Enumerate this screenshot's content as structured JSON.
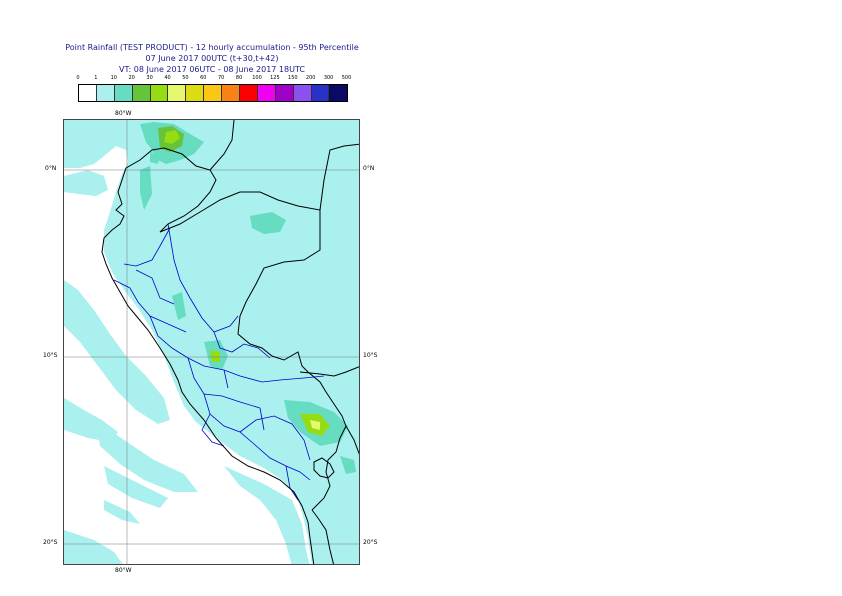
{
  "title": {
    "line1": "Point Rainfall (TEST PRODUCT) - 12 hourly accumulation - 95th Percentile",
    "line2": "07 June 2017 00UTC (t+30,t+42)",
    "line3": "VT: 08 June 2017 06UTC - 08 June 2017 18UTC"
  },
  "legend": {
    "thresholds": [
      "0",
      "1",
      "10",
      "20",
      "30",
      "40",
      "50",
      "60",
      "70",
      "80",
      "100",
      "125",
      "150",
      "200",
      "300",
      "500"
    ],
    "colors": [
      "#ffffff",
      "#aaf0ee",
      "#66dcc0",
      "#66c43a",
      "#96dc14",
      "#e6f86e",
      "#dcdc14",
      "#fac814",
      "#fa8214",
      "#fa0000",
      "#f000f0",
      "#a000c8",
      "#8c50f0",
      "#2832c8",
      "#0a0a64"
    ]
  },
  "axes": {
    "lon_top": "80°W",
    "lon_bottom": "80°W",
    "lat_0_left": "0°N",
    "lat_0_right": "0°N",
    "lat_10_left": "10°S",
    "lat_10_right": "10°S",
    "lat_20_left": "20°S",
    "lat_20_right": "20°S"
  },
  "map": {
    "colors": {
      "ocean": "#ffffff",
      "light_rain": "#aaf0ee",
      "moderate_rain": "#66dcc0",
      "heavy_rain": "#66c43a",
      "very_heavy_rain": "#96dc14",
      "extreme_rain": "#e6f86e",
      "borders": "#000000",
      "admin_borders": "#0000cc",
      "graticule": "#777777"
    }
  }
}
